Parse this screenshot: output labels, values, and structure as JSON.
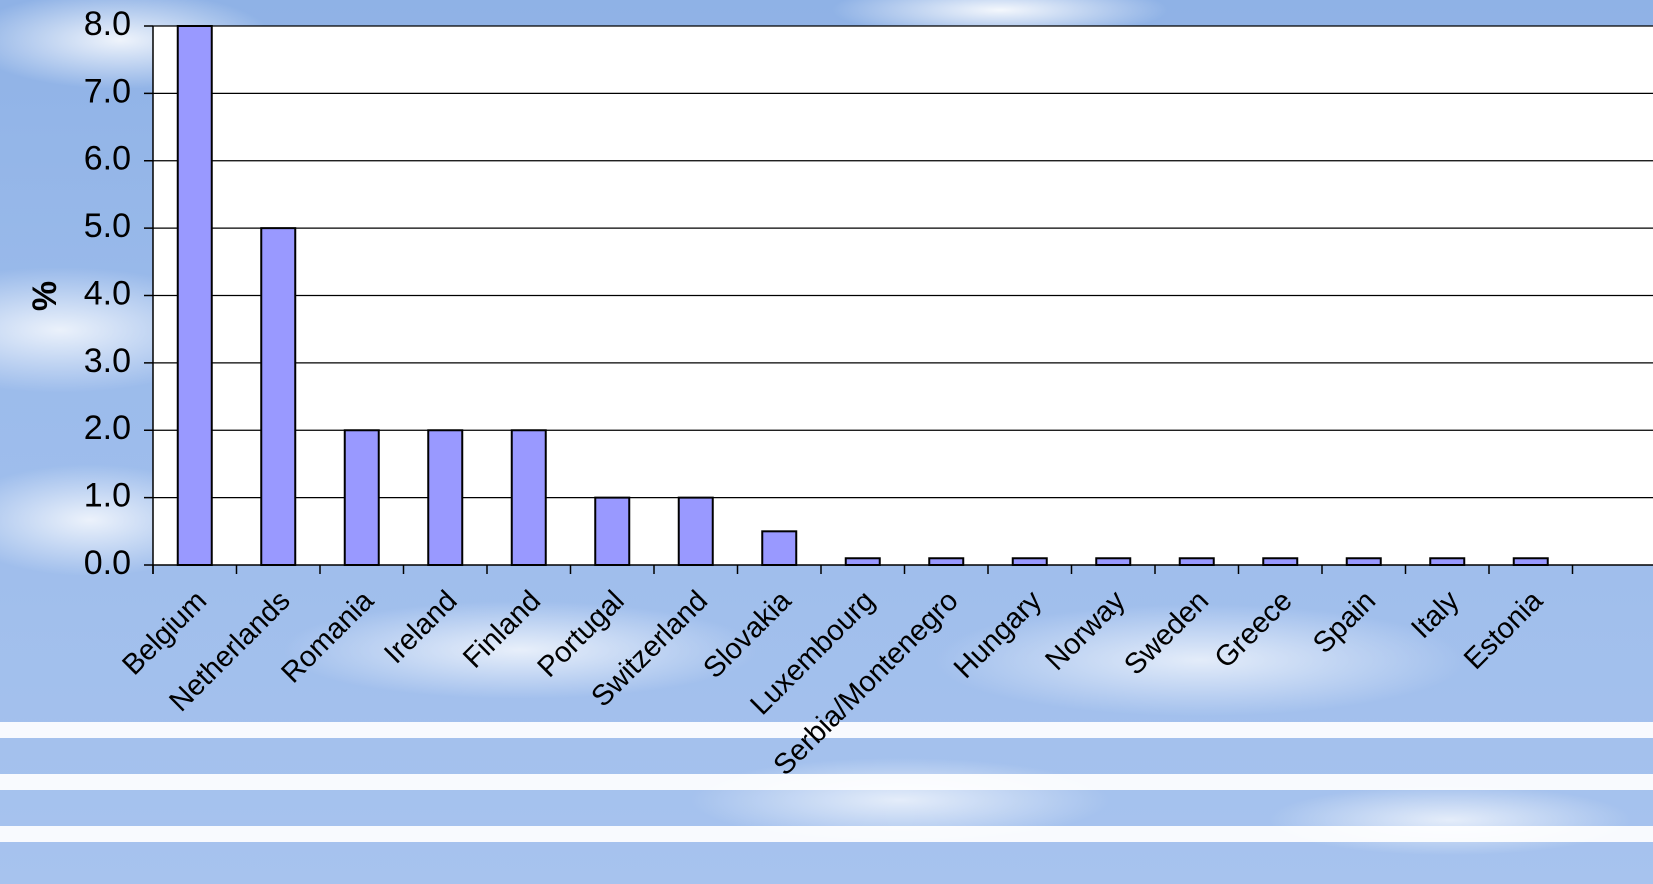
{
  "chart_data": {
    "type": "bar",
    "categories": [
      "Belgium",
      "Netherlands",
      "Romania",
      "Ireland",
      "Finland",
      "Portugal",
      "Switzerland",
      "Slovakia",
      "Luxembourg",
      "Serbia/Montenegro",
      "Hungary",
      "Norway",
      "Sweden",
      "Greece",
      "Spain",
      "Italy",
      "Estonia"
    ],
    "values": [
      8.0,
      5.0,
      2.0,
      2.0,
      2.0,
      1.0,
      1.0,
      0.5,
      0.1,
      0.1,
      0.1,
      0.1,
      0.1,
      0.1,
      0.1,
      0.1,
      0.1
    ],
    "ylabel": "%",
    "ylim": [
      0,
      8
    ],
    "yticks": [
      "0.0",
      "1.0",
      "2.0",
      "3.0",
      "4.0",
      "5.0",
      "6.0",
      "7.0",
      "8.0"
    ],
    "grid": true,
    "colors": {
      "bar_fill": "#9999ff",
      "bar_stroke": "#000000",
      "plot_bg": "#ffffff",
      "grid": "#000000"
    }
  }
}
